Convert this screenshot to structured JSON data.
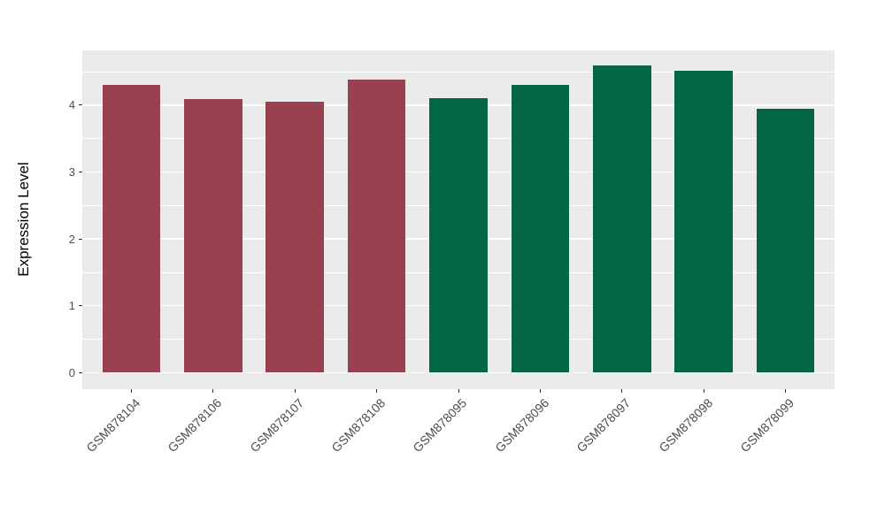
{
  "chart_data": {
    "type": "bar",
    "title": "",
    "xlabel": "",
    "ylabel": "Expression Level",
    "categories": [
      "GSM878104",
      "GSM878106",
      "GSM878107",
      "GSM878108",
      "GSM878095",
      "GSM878096",
      "GSM878097",
      "GSM878098",
      "GSM878099"
    ],
    "values": [
      4.3,
      4.09,
      4.05,
      4.39,
      4.1,
      4.3,
      4.6,
      4.52,
      3.95
    ],
    "bar_colors": [
      "#9A4150",
      "#9A4150",
      "#9A4150",
      "#9A4150",
      "#026647",
      "#026647",
      "#026647",
      "#026647",
      "#026647"
    ],
    "yticks": [
      0,
      1,
      2,
      3,
      4
    ],
    "ytick_labels": [
      "0",
      "1",
      "2",
      "3",
      "4"
    ],
    "minor_ticks": [
      0.5,
      1.5,
      2.5,
      3.5,
      4.5
    ],
    "ylim": [
      -0.24,
      4.82
    ],
    "grid": true,
    "legend_position": "none",
    "panel_background": "#EBEBEB",
    "grid_color": "#FFFFFF",
    "tick_text_color": "#4D4D4D",
    "axis_title_color": "#000000"
  }
}
